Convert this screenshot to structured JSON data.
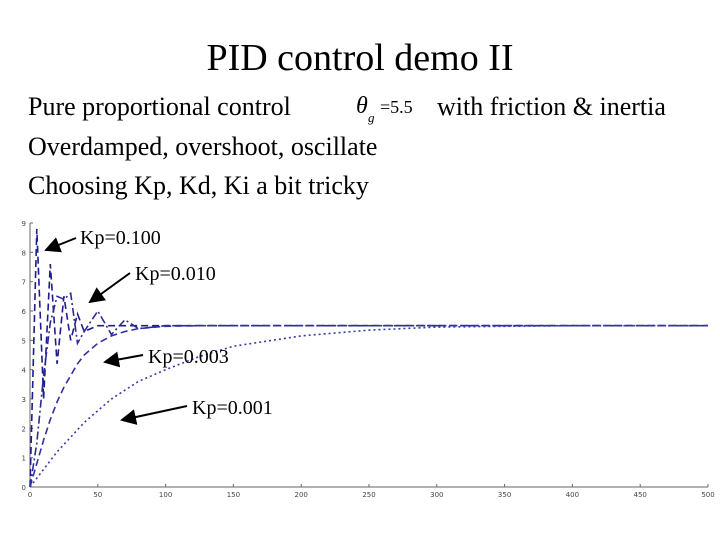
{
  "slide": {
    "title": "PID control demo II",
    "lines": [
      {
        "before": "Pure proportional control",
        "symbol": "θ",
        "subscript": "g",
        "formula": "=5.5",
        "after": "with friction & inertia"
      },
      "Overdamped, overshoot, oscillate",
      "Choosing Kp, Kd, Ki a bit tricky"
    ]
  },
  "chart_data": {
    "type": "line",
    "x": [
      0,
      5,
      10,
      15,
      20,
      25,
      30,
      35,
      40,
      50,
      60,
      70,
      80,
      100,
      125,
      150,
      200,
      250,
      300,
      350,
      400,
      450,
      500
    ],
    "series": [
      {
        "name": "Kp=0.100",
        "color": "#1c1c8a",
        "style": "dashed",
        "values": [
          0,
          8.8,
          3.0,
          7.6,
          4.2,
          6.5,
          5.0,
          5.9,
          5.3,
          5.5,
          5.5,
          5.5,
          5.5,
          5.5,
          5.5,
          5.5,
          5.5,
          5.5,
          5.5,
          5.5,
          5.5,
          5.5,
          5.5
        ]
      },
      {
        "name": "Kp=0.010",
        "color": "#2a2a9a",
        "style": "dashdot",
        "values": [
          0,
          1.5,
          3.8,
          5.6,
          6.5,
          6.4,
          6.6,
          4.9,
          5.3,
          6.0,
          5.2,
          5.7,
          5.4,
          5.5,
          5.5,
          5.5,
          5.5,
          5.5,
          5.5,
          5.5,
          5.5,
          5.5,
          5.5
        ]
      },
      {
        "name": "Kp=0.003",
        "color": "#3030a0",
        "style": "dashed",
        "values": [
          0,
          0.8,
          1.6,
          2.3,
          2.9,
          3.4,
          3.8,
          4.2,
          4.5,
          4.9,
          5.15,
          5.3,
          5.4,
          5.48,
          5.5,
          5.5,
          5.5,
          5.5,
          5.5,
          5.5,
          5.5,
          5.5,
          5.5
        ]
      },
      {
        "name": "Kp=0.001",
        "color": "#3a3aa8",
        "style": "dotted",
        "values": [
          0,
          0.3,
          0.6,
          0.9,
          1.2,
          1.45,
          1.7,
          1.95,
          2.2,
          2.6,
          3.0,
          3.3,
          3.6,
          4.0,
          4.45,
          4.8,
          5.15,
          5.35,
          5.45,
          5.48,
          5.5,
          5.5,
          5.5
        ]
      }
    ],
    "xlim": [
      0,
      500
    ],
    "xticks": [
      0,
      50,
      100,
      150,
      200,
      250,
      300,
      350,
      400,
      450,
      500
    ],
    "ylim": [
      0,
      9
    ],
    "yticks": [
      0,
      1,
      2,
      3,
      4,
      5,
      6,
      7,
      8,
      9
    ]
  }
}
